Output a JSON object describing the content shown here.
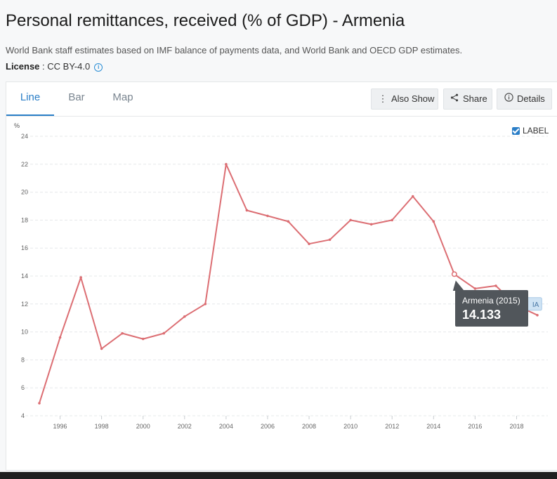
{
  "page": {
    "title": "Personal remittances, received (% of GDP) - Armenia",
    "source_note": "World Bank staff estimates based on IMF balance of payments data, and World Bank and OECD GDP estimates.",
    "license_key": "License",
    "license_value": " : CC BY-4.0",
    "info_icon": "info-icon"
  },
  "tabs": [
    {
      "label": "Line",
      "active": true
    },
    {
      "label": "Bar",
      "active": false
    },
    {
      "label": "Map",
      "active": false
    }
  ],
  "toolbar": {
    "also_show": "Also Show",
    "share": "Share",
    "details": "Details",
    "icons": [
      "vertical-dots-icon",
      "share-icon",
      "info-circle-icon"
    ]
  },
  "legend_toggle": {
    "label": "LABEL",
    "checked": true
  },
  "colors": {
    "series": "#dc6e73",
    "tab_active": "#2a7ec7",
    "tooltip_bg": "#51565b",
    "label_tag_bg": "#cfe3f4"
  },
  "chart_data": {
    "type": "line",
    "ylabel": "%",
    "ylim": [
      4,
      24
    ],
    "yticks": [
      4,
      6,
      8,
      10,
      12,
      14,
      16,
      18,
      20,
      22,
      24
    ],
    "xticks": [
      1996,
      1998,
      2000,
      2002,
      2004,
      2006,
      2008,
      2010,
      2012,
      2014,
      2016,
      2018
    ],
    "xlim": [
      1995,
      2019
    ],
    "grid": true,
    "series": [
      {
        "name": "Armenia",
        "x": [
          1995,
          1996,
          1997,
          1998,
          1999,
          2000,
          2001,
          2002,
          2003,
          2004,
          2005,
          2006,
          2007,
          2008,
          2009,
          2010,
          2011,
          2012,
          2013,
          2014,
          2015,
          2016,
          2017,
          2018,
          2019
        ],
        "values": [
          4.9,
          9.6,
          13.9,
          8.8,
          9.9,
          9.5,
          9.9,
          11.1,
          12.0,
          22.0,
          18.7,
          18.3,
          17.9,
          16.3,
          16.6,
          18.0,
          17.7,
          18.0,
          19.7,
          17.9,
          14.133,
          13.1,
          13.3,
          11.9,
          11.2
        ]
      }
    ],
    "series_label_tag": "IA",
    "tooltip": {
      "title": "Armenia (2015)",
      "value": "14.133",
      "x": 2015
    }
  }
}
